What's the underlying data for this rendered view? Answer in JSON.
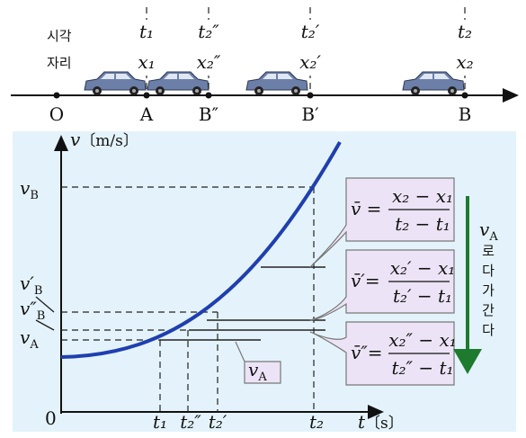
{
  "timeline": {
    "row_labels": [
      "시각",
      "자리"
    ],
    "times": [
      "t₁",
      "t₂″",
      "t₂′",
      "t₂"
    ],
    "positions": [
      "x₁",
      "x₂″",
      "x₂′",
      "x₂"
    ],
    "points": [
      "O",
      "A",
      "B″",
      "B′",
      "B"
    ]
  },
  "graph": {
    "y_axis": {
      "v": "v",
      "unit": "〔m/s〕"
    },
    "x_axis": {
      "t": "t",
      "unit": "〔s〕"
    },
    "origin": "0",
    "time_labels": [
      "t₁",
      "t₂″",
      "t₂′",
      "t₂"
    ],
    "velocity_labels": [
      {
        "v": "v",
        "sub": "B"
      },
      {
        "v": "v′",
        "sub": "B"
      },
      {
        "v": "v″",
        "sub": "B"
      },
      {
        "v": "v",
        "sub": "A"
      }
    ],
    "bubble": {
      "v": "v",
      "sub": "A"
    },
    "formulas": [
      {
        "lhs": "v̄ =",
        "num": "x₂ − x₁",
        "den": "t₂ − t₁"
      },
      {
        "lhs": "v̄′=",
        "num": "x₂′ − x₁",
        "den": "t₂′ − t₁"
      },
      {
        "lhs": "v̄″=",
        "num": "x₂″ − x₁",
        "den": "t₂″ − t₁"
      }
    ],
    "side_note": {
      "v": "v",
      "sub": "A",
      "chars": [
        "로",
        "다",
        "가",
        "간",
        "다"
      ]
    }
  }
}
